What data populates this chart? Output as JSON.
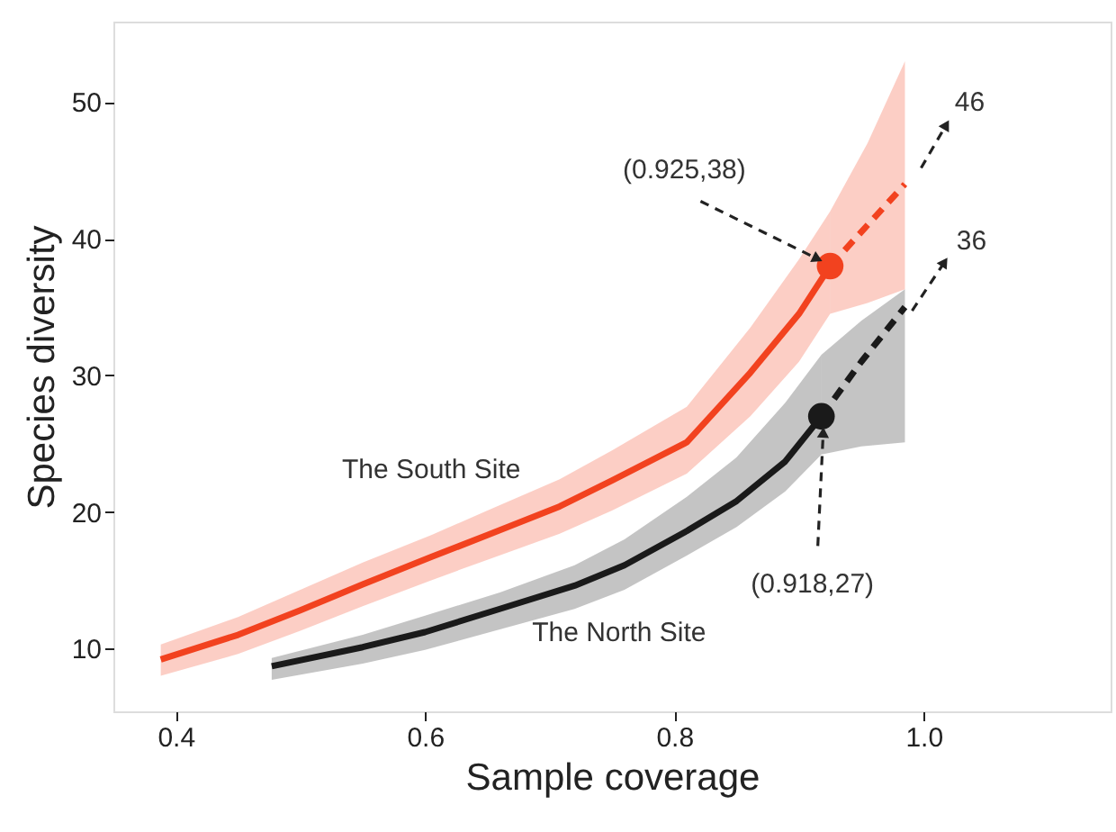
{
  "chart_data": {
    "type": "line",
    "xlabel": "Sample coverage",
    "ylabel": "Species diversity",
    "xlim": [
      0.35,
      1.15
    ],
    "ylim": [
      5.4,
      55.9
    ],
    "xticks": [
      0.4,
      0.6,
      0.8,
      {
        "value": 1.0,
        "label": "1.0"
      }
    ],
    "yticks": [
      10,
      20,
      30,
      40,
      50
    ],
    "grid": false,
    "marker": "none",
    "series": [
      {
        "name": "The South Site",
        "color": "#f2421f",
        "line_style": "solid",
        "x": [
          0.388,
          0.45,
          0.5,
          0.55,
          0.605,
          0.65,
          0.708,
          0.75,
          0.81,
          0.861,
          0.9,
          0.925
        ],
        "values": [
          9.2,
          11.0,
          12.8,
          14.7,
          16.7,
          18.3,
          20.4,
          22.3,
          25.1,
          30.2,
          34.5,
          38
        ],
        "lower": [
          8.0,
          9.6,
          11.3,
          13.1,
          15.0,
          16.5,
          18.4,
          20.1,
          22.8,
          27.0,
          31.0,
          34.5
        ],
        "upper": [
          10.3,
          12.3,
          14.3,
          16.3,
          18.3,
          20.1,
          22.4,
          24.5,
          27.7,
          33.5,
          38.5,
          42.0
        ]
      },
      {
        "color": "#f2421f",
        "line_style": "dashed",
        "x": [
          0.925,
          0.955,
          0.985
        ],
        "values": [
          38,
          41,
          44
        ],
        "lower": [
          34.5,
          35.3,
          36.3
        ],
        "upper": [
          42.0,
          47.0,
          53.0
        ]
      },
      {
        "type": "scatter",
        "marker": "circle",
        "color": "#f2421f",
        "x": [
          0.925
        ],
        "values": [
          38
        ]
      },
      {
        "name": "The North Site",
        "color": "#1a1a1a",
        "line_style": "solid",
        "x": [
          0.477,
          0.55,
          0.6,
          0.66,
          0.72,
          0.76,
          0.81,
          0.85,
          0.889,
          0.918
        ],
        "values": [
          8.7,
          10.1,
          11.2,
          12.9,
          14.6,
          16.1,
          18.6,
          20.8,
          23.7,
          27
        ],
        "lower": [
          7.7,
          8.9,
          9.9,
          11.4,
          12.9,
          14.3,
          16.8,
          18.9,
          21.5,
          24.2
        ],
        "upper": [
          9.3,
          11.0,
          12.4,
          14.1,
          16.1,
          18.0,
          21.1,
          24.0,
          28.0,
          31.5
        ]
      },
      {
        "color": "#1a1a1a",
        "line_style": "dashed",
        "x": [
          0.918,
          0.95,
          0.985
        ],
        "values": [
          27,
          31,
          35
        ],
        "lower": [
          24.2,
          24.8,
          25.1
        ],
        "upper": [
          31.5,
          34.0,
          36.3
        ]
      },
      {
        "type": "scatter",
        "marker": "circle",
        "color": "#1a1a1a",
        "x": [
          0.918
        ],
        "values": [
          27
        ]
      }
    ],
    "annotations": [
      {
        "text": "(0.925,38)",
        "x": 0.925,
        "y": 38
      },
      "46",
      "36",
      {
        "text": "(0.918,27)",
        "x": 0.918,
        "y": 27
      }
    ]
  }
}
